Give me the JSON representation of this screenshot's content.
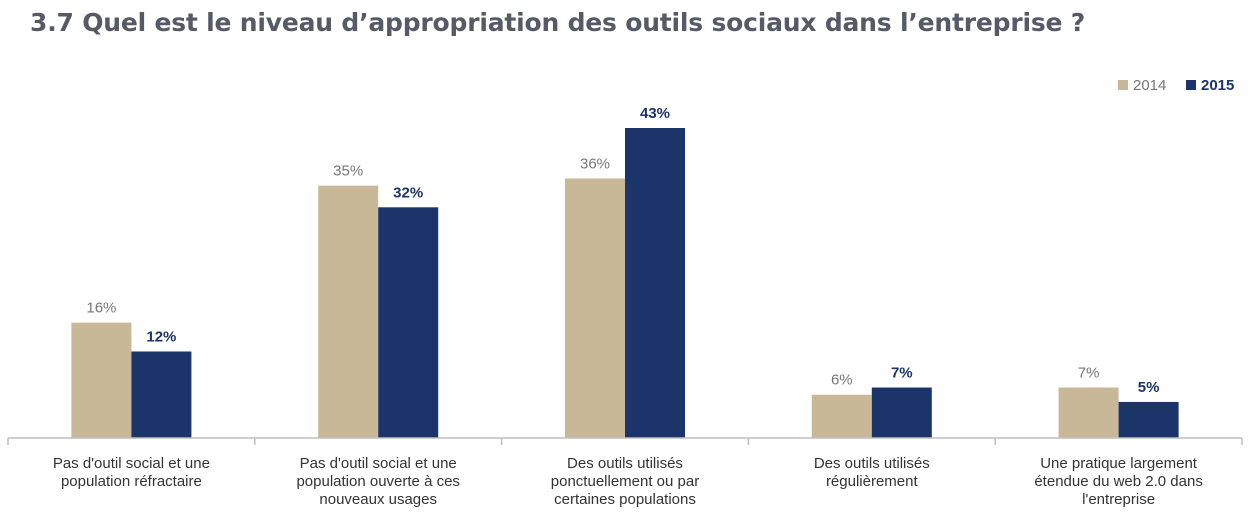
{
  "chart_data": {
    "type": "bar",
    "title": "3.7 Quel est le niveau d’appropriation des outils sociaux dans l’entreprise ?",
    "categories": [
      [
        "Pas d'outil social et une",
        "population réfractaire"
      ],
      [
        "Pas d'outil social et une",
        "population ouverte à ces",
        "nouveaux usages"
      ],
      [
        "Des outils utilisés",
        "ponctuellement ou par",
        "certaines populations"
      ],
      [
        "Des outils utilisés",
        "régulièrement"
      ],
      [
        "Une pratique largement",
        "étendue du web 2.0 dans",
        "l'entreprise"
      ]
    ],
    "series": [
      {
        "name": "2014",
        "color": "#c8b898",
        "values": [
          16,
          35,
          36,
          6,
          7
        ],
        "labels": [
          "16%",
          "35%",
          "36%",
          "6%",
          "7%"
        ]
      },
      {
        "name": "2015",
        "color": "#1b3469",
        "values": [
          12,
          32,
          43,
          7,
          5
        ],
        "labels": [
          "12%",
          "32%",
          "43%",
          "7%",
          "5%"
        ]
      }
    ],
    "ylim": [
      0,
      45
    ],
    "legend_position": "top-right",
    "grid": false
  }
}
